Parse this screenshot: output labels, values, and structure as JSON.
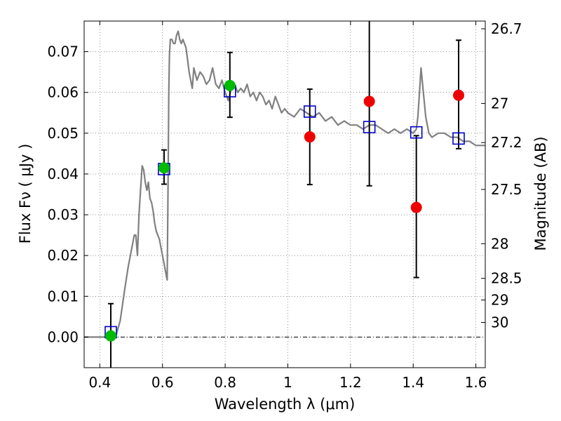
{
  "chart_data": {
    "type": "scatter",
    "xlabel": "Wavelength  λ (μm)",
    "ylabel": "Flux  Fν  ( μJy )",
    "ylabel_right": "Magnitude (AB)",
    "xlim": [
      0.35,
      1.63
    ],
    "ylim": [
      -0.0075,
      0.0775
    ],
    "xticks": [
      0.4,
      0.6,
      0.8,
      1.0,
      1.2,
      1.4,
      1.6
    ],
    "xtick_labels": [
      "0.4",
      "0.6",
      "0.8",
      "1",
      "1.2",
      "1.4",
      "1.6"
    ],
    "yticks": [
      0.0,
      0.01,
      0.02,
      0.03,
      0.04,
      0.05,
      0.06,
      0.07
    ],
    "ytick_labels": [
      "0.00",
      "0.01",
      "0.02",
      "0.03",
      "0.04",
      "0.05",
      "0.06",
      "0.07"
    ],
    "right_ticks": [
      {
        "label": "26.7",
        "flux": 0.0756
      },
      {
        "label": "27",
        "flux": 0.0573
      },
      {
        "label": "27.2",
        "flux": 0.0477
      },
      {
        "label": "27.5",
        "flux": 0.0362
      },
      {
        "label": "28",
        "flux": 0.0229
      },
      {
        "label": "28.5",
        "flux": 0.0144
      },
      {
        "label": "29",
        "flux": 0.0091
      },
      {
        "label": "30",
        "flux": 0.0036
      }
    ],
    "grid": true,
    "colors": {
      "model": "#808080",
      "green": "#00bb00",
      "red": "#ee0000",
      "model_box": "#0000cc",
      "errorbar": "#000000",
      "zero_line": "#000000"
    },
    "series": [
      {
        "style": "line",
        "color": "#808080",
        "x": [
          0.35,
          0.45,
          0.465,
          0.48,
          0.49,
          0.5,
          0.51,
          0.515,
          0.52,
          0.525,
          0.53,
          0.535,
          0.54,
          0.545,
          0.55,
          0.555,
          0.56,
          0.565,
          0.57,
          0.575,
          0.58,
          0.585,
          0.59,
          0.595,
          0.6,
          0.605,
          0.61,
          0.615,
          0.618,
          0.62,
          0.622,
          0.625,
          0.63,
          0.635,
          0.64,
          0.645,
          0.65,
          0.655,
          0.66,
          0.665,
          0.67,
          0.675,
          0.68,
          0.685,
          0.69,
          0.695,
          0.7,
          0.71,
          0.72,
          0.73,
          0.74,
          0.75,
          0.76,
          0.77,
          0.78,
          0.79,
          0.8,
          0.81,
          0.82,
          0.83,
          0.84,
          0.85,
          0.86,
          0.87,
          0.88,
          0.89,
          0.9,
          0.91,
          0.92,
          0.93,
          0.94,
          0.95,
          0.96,
          0.97,
          0.98,
          0.99,
          1.0,
          1.02,
          1.04,
          1.06,
          1.08,
          1.1,
          1.12,
          1.14,
          1.16,
          1.18,
          1.2,
          1.22,
          1.24,
          1.26,
          1.28,
          1.3,
          1.32,
          1.34,
          1.36,
          1.38,
          1.4,
          1.41,
          1.415,
          1.42,
          1.425,
          1.43,
          1.44,
          1.45,
          1.46,
          1.48,
          1.5,
          1.52,
          1.54,
          1.56,
          1.58,
          1.6,
          1.63
        ],
        "y": [
          0.0,
          0.0,
          0.004,
          0.012,
          0.017,
          0.021,
          0.025,
          0.025,
          0.02,
          0.03,
          0.036,
          0.042,
          0.041,
          0.038,
          0.036,
          0.038,
          0.034,
          0.033,
          0.031,
          0.028,
          0.026,
          0.025,
          0.024,
          0.022,
          0.02,
          0.018,
          0.016,
          0.014,
          0.04,
          0.06,
          0.069,
          0.073,
          0.073,
          0.072,
          0.072,
          0.074,
          0.075,
          0.073,
          0.072,
          0.073,
          0.072,
          0.071,
          0.068,
          0.065,
          0.063,
          0.061,
          0.066,
          0.063,
          0.065,
          0.064,
          0.062,
          0.063,
          0.066,
          0.062,
          0.061,
          0.063,
          0.06,
          0.058,
          0.061,
          0.062,
          0.06,
          0.061,
          0.06,
          0.062,
          0.059,
          0.06,
          0.058,
          0.06,
          0.059,
          0.057,
          0.058,
          0.056,
          0.059,
          0.057,
          0.055,
          0.056,
          0.055,
          0.054,
          0.056,
          0.055,
          0.054,
          0.055,
          0.053,
          0.054,
          0.052,
          0.053,
          0.052,
          0.052,
          0.051,
          0.052,
          0.052,
          0.051,
          0.05,
          0.051,
          0.05,
          0.051,
          0.05,
          0.051,
          0.054,
          0.06,
          0.066,
          0.062,
          0.054,
          0.05,
          0.049,
          0.05,
          0.05,
          0.049,
          0.049,
          0.048,
          0.048,
          0.047,
          0.047
        ]
      },
      {
        "style": "square",
        "color": "#0000cc",
        "x": [
          0.435,
          0.605,
          0.815,
          1.07,
          1.26,
          1.41,
          1.545
        ],
        "y": [
          0.0012,
          0.0412,
          0.0603,
          0.0553,
          0.0515,
          0.0502,
          0.0487
        ]
      },
      {
        "style": "circle",
        "color": "#00bb00",
        "x": [
          0.435,
          0.605,
          0.815
        ],
        "y": [
          0.0003,
          0.0415,
          0.0617
        ]
      },
      {
        "style": "circle",
        "color": "#ee0000",
        "x": [
          1.07,
          1.26,
          1.41,
          1.545
        ],
        "y": [
          0.0491,
          0.0578,
          0.0318,
          0.0593
        ]
      },
      {
        "style": "errorbar",
        "color": "#000000",
        "x": [
          0.435,
          0.605,
          0.815,
          1.07,
          1.26,
          1.41,
          1.545
        ],
        "ylow": [
          -0.008,
          0.0375,
          0.0539,
          0.0374,
          0.0371,
          0.0146,
          0.0462
        ],
        "yhigh": [
          0.0082,
          0.0459,
          0.0698,
          0.0608,
          0.078,
          0.0494,
          0.0728
        ]
      }
    ]
  }
}
